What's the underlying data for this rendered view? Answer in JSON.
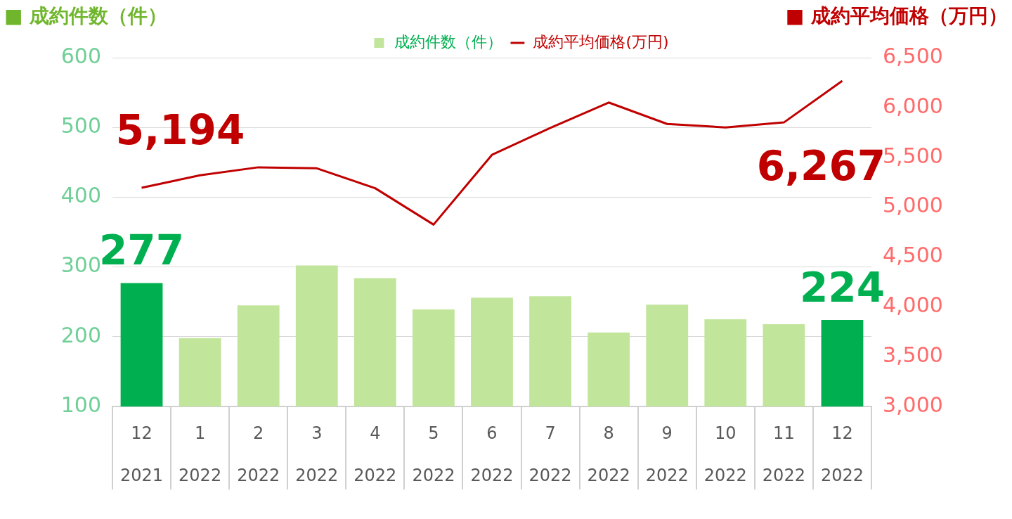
{
  "chart_data": {
    "type": "bar",
    "ylabel": "■ 成約件数（件）",
    "y2label": "■ 成約平均価格（万円）",
    "categories": [
      "12\n2021",
      "1\n2022",
      "2\n2022",
      "3\n2022",
      "4\n2022",
      "5\n2022",
      "6\n2022",
      "7\n2022",
      "8\n2022",
      "9\n2022",
      "10\n2022",
      "11\n2022",
      "12\n2022"
    ],
    "series": [
      {
        "name": "成約件数（件）",
        "color": "#c2e59c",
        "colors": [
          "#00b050",
          "#c2e59c",
          "#c2e59c",
          "#c2e59c",
          "#c2e59c",
          "#c2e59c",
          "#c2e59c",
          "#c2e59c",
          "#c2e59c",
          "#c2e59c",
          "#c2e59c",
          "#c2e59c",
          "#00b050"
        ],
        "values": [
          277,
          198,
          245,
          302,
          284,
          239,
          256,
          258,
          206,
          246,
          225,
          218,
          224
        ],
        "value_labels": [
          "277",
          null,
          null,
          null,
          null,
          null,
          null,
          null,
          null,
          null,
          null,
          null,
          "224"
        ]
      },
      {
        "name": "成約平均価格(万円)",
        "type": "line",
        "axis": "y2",
        "color": "#c00000",
        "values": [
          5194,
          5320,
          5400,
          5390,
          5190,
          4825,
          5525,
          5795,
          6050,
          5835,
          5800,
          5850,
          6267
        ],
        "value_labels": [
          "5,194",
          null,
          null,
          null,
          null,
          null,
          null,
          null,
          null,
          null,
          null,
          null,
          "6,267"
        ]
      }
    ],
    "ylim": [
      100,
      600
    ],
    "yticks": [
      100,
      200,
      300,
      400,
      500,
      600
    ],
    "y2lim": [
      3000,
      6500
    ],
    "y2ticks": [
      {
        "value": 3000,
        "label": "3,000"
      },
      {
        "value": 3500,
        "label": "3,500"
      },
      {
        "value": 4000,
        "label": "4,000"
      },
      {
        "value": 4500,
        "label": "4,500"
      },
      {
        "value": 5000,
        "label": "5,000"
      },
      {
        "value": 5500,
        "label": "5,500"
      },
      {
        "value": 6000,
        "label": "6,000"
      },
      {
        "value": 6500,
        "label": "6,500"
      }
    ],
    "grid": "y",
    "legend": "top",
    "marker": "none",
    "line_style": "solid"
  }
}
